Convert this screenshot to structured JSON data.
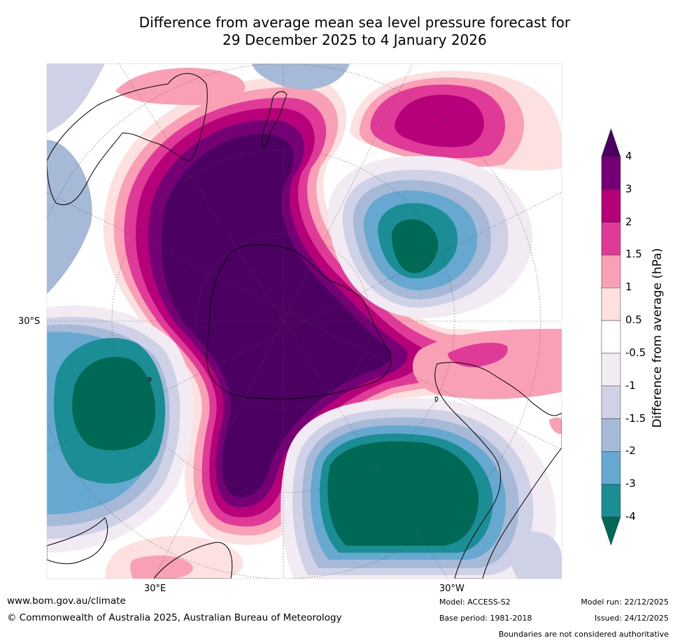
{
  "title": {
    "line1": "Difference from average mean sea level pressure forecast for",
    "line2": "29 December 2025 to 4 January 2026"
  },
  "map_labels": {
    "lat_30s": "30°S",
    "lon_30e": "30°E",
    "lon_30w": "30°W"
  },
  "colorbar": {
    "title": "Difference from average (hPa)",
    "levels": [
      "4",
      "3",
      "2",
      "1.5",
      "1",
      "0.5",
      "-0.5",
      "-1",
      "-1.5",
      "-2",
      "-3",
      "-4"
    ],
    "colors": [
      "#4b0062",
      "#750075",
      "#b5007a",
      "#df3a97",
      "#f99fb6",
      "#fde1e1",
      "#ffffff",
      "#f2ebf4",
      "#cfd1e6",
      "#a6b9d7",
      "#66a8cf",
      "#1b8e95",
      "#006955"
    ]
  },
  "footer": {
    "website": "www.bom.gov.au/climate",
    "copyright": "© Commonwealth of Australia 2025, Australian Bureau of Meteorology",
    "model": "Model: ACCESS-S2",
    "base_period": "Base period: 1981-2018",
    "model_run": "Model run: 22/12/2025",
    "issued": "Issued: 24/12/2025",
    "disclaimer": "Boundaries are not considered authoritative"
  }
}
